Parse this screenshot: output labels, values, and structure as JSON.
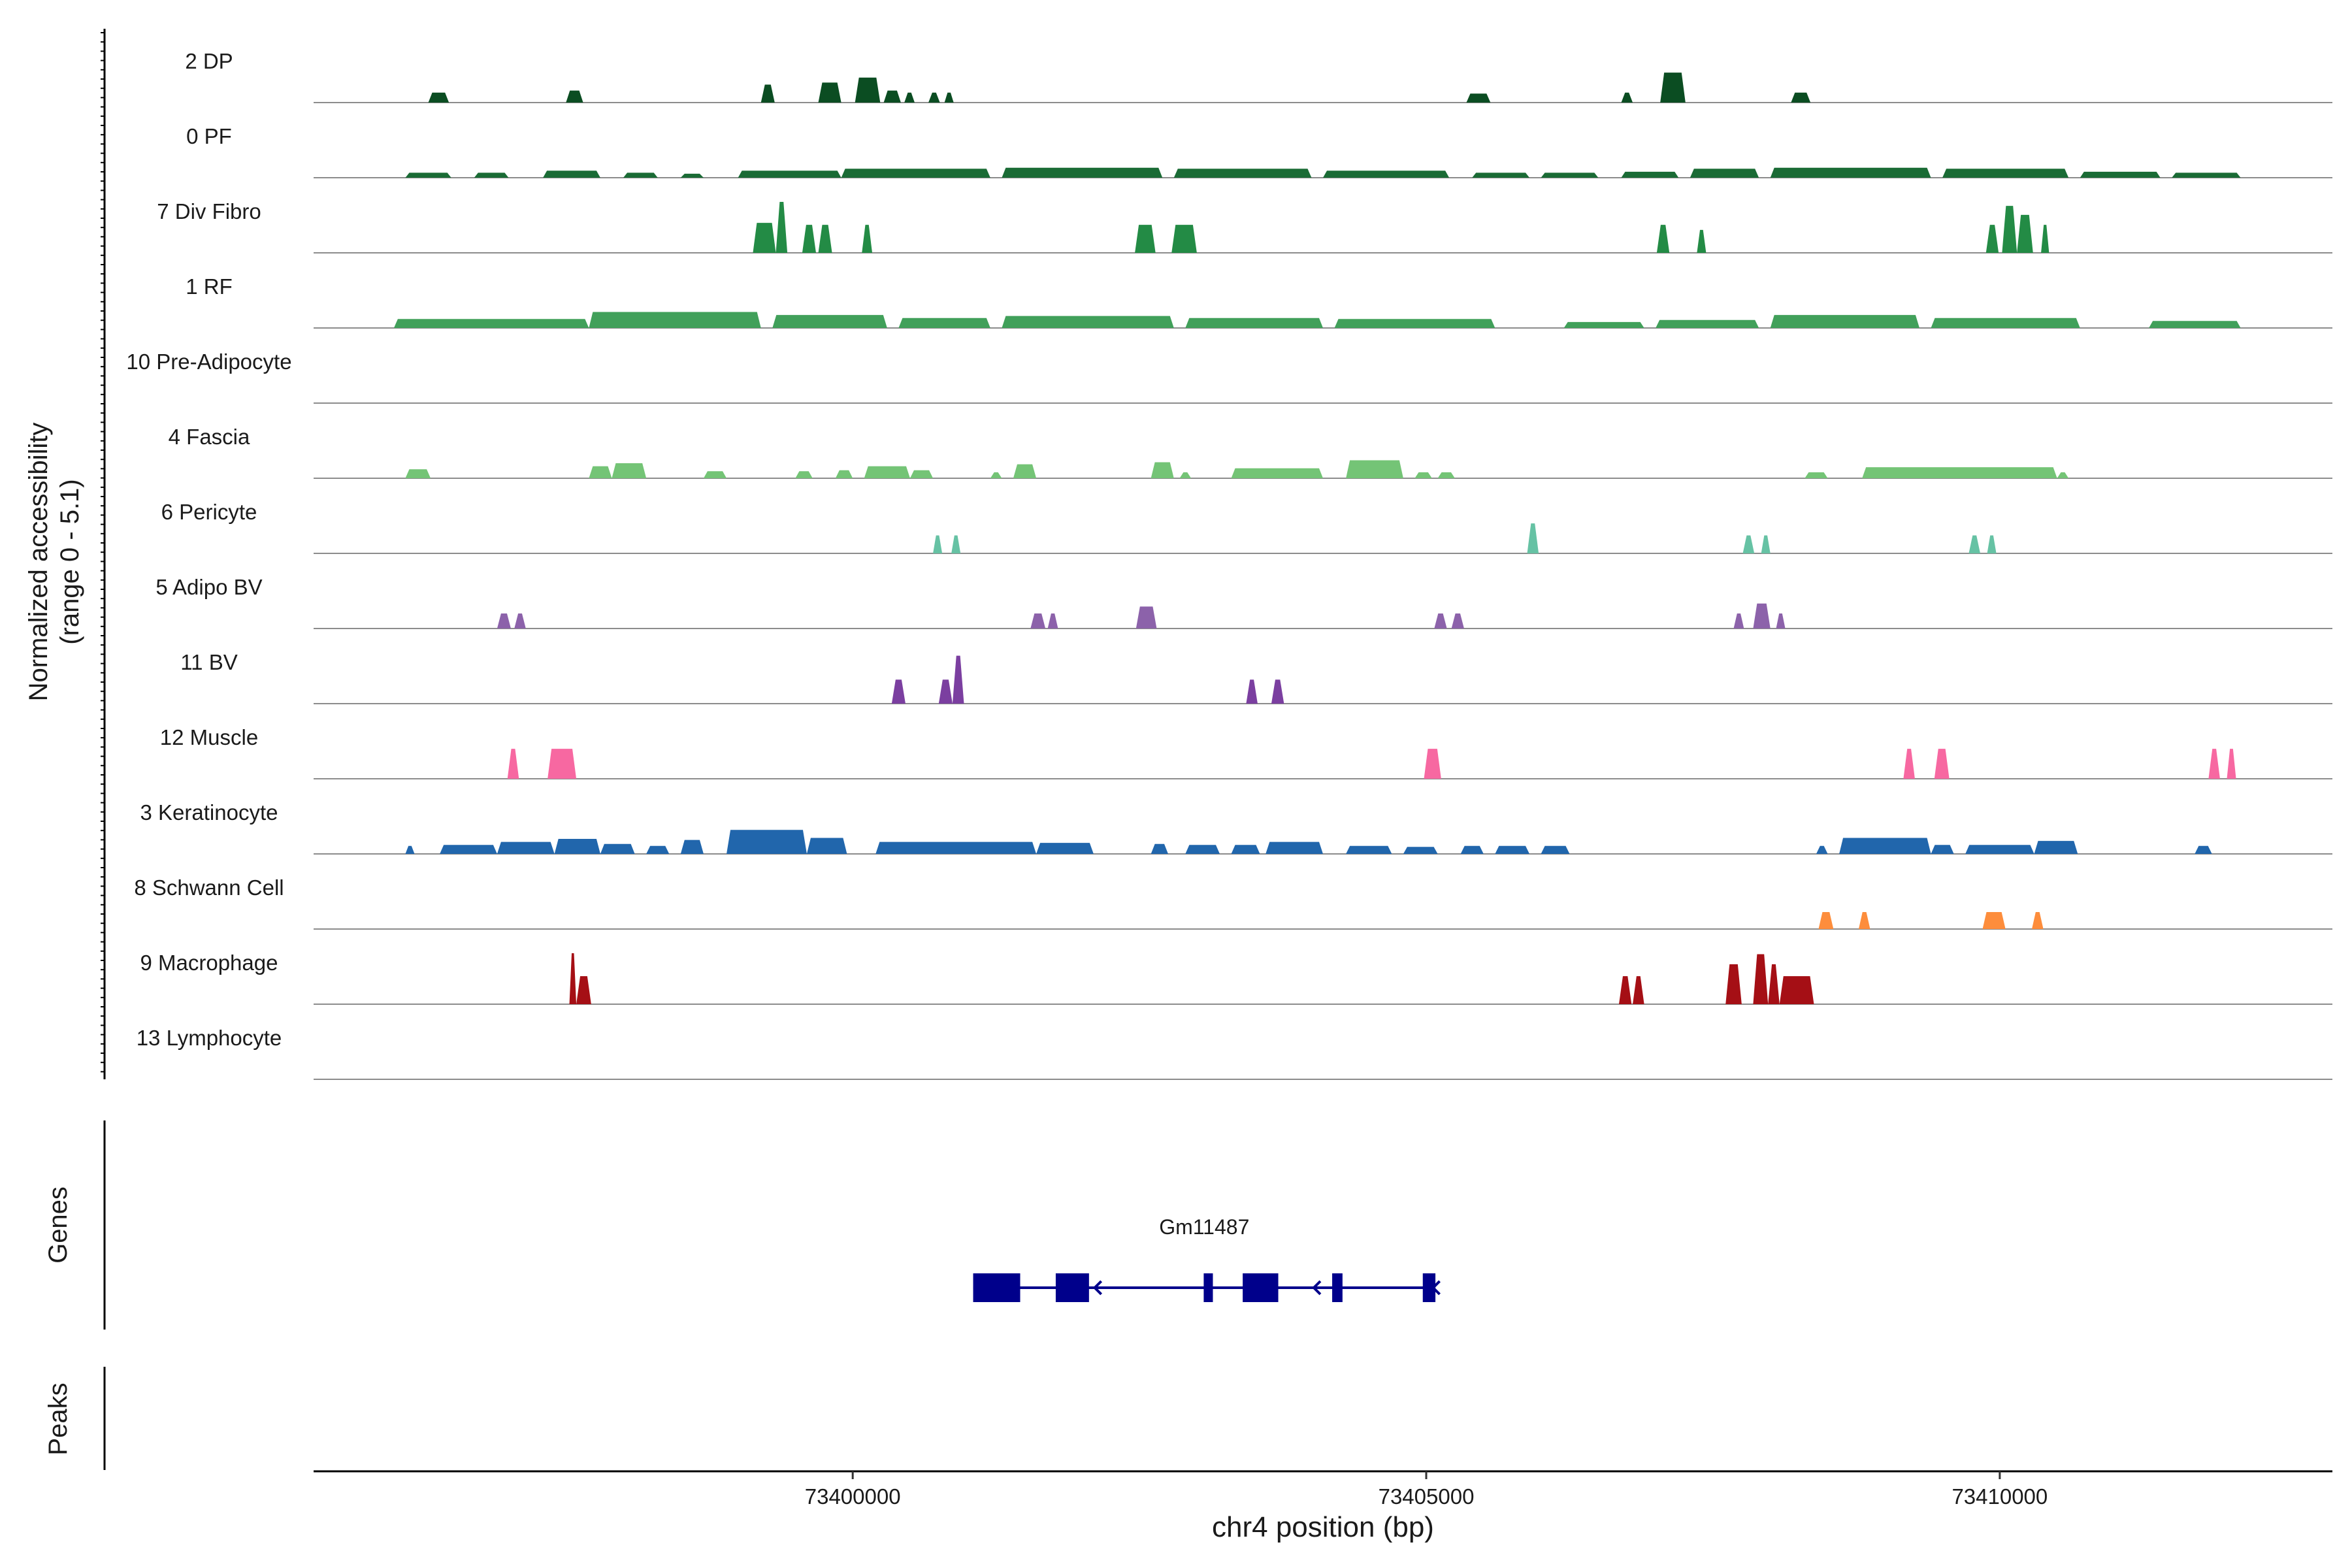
{
  "chart_data": {
    "type": "area",
    "title": "",
    "ylabel_lines": [
      "Normalized accessibility",
      "(range 0 - 5.1)"
    ],
    "y_range": [
      0,
      5.1
    ],
    "xlabel": "chr4 position (bp)",
    "xlim": [
      73395300,
      73412900
    ],
    "x_ticks": [
      73400000,
      73405000,
      73410000
    ],
    "x_tick_labels": [
      "73400000",
      "73405000",
      "73410000"
    ],
    "tracks": [
      {
        "name": "2 DP",
        "color": "#0b4d22",
        "peaks": [
          {
            "start": 73396300,
            "end": 73396480,
            "height": 1.0
          },
          {
            "start": 73397500,
            "end": 73397650,
            "height": 1.2
          },
          {
            "start": 73399200,
            "end": 73399320,
            "height": 1.8
          },
          {
            "start": 73399700,
            "end": 73399900,
            "height": 2.0
          },
          {
            "start": 73400020,
            "end": 73400240,
            "height": 2.5
          },
          {
            "start": 73400270,
            "end": 73400420,
            "height": 1.2
          },
          {
            "start": 73400450,
            "end": 73400540,
            "height": 1.0
          },
          {
            "start": 73400660,
            "end": 73400760,
            "height": 1.0
          },
          {
            "start": 73400800,
            "end": 73400880,
            "height": 1.0
          },
          {
            "start": 73405350,
            "end": 73405560,
            "height": 0.9
          },
          {
            "start": 73406700,
            "end": 73406800,
            "height": 1.0
          },
          {
            "start": 73407040,
            "end": 73407260,
            "height": 3.0
          },
          {
            "start": 73408180,
            "end": 73408350,
            "height": 1.0
          }
        ]
      },
      {
        "name": "0 PF",
        "color": "#1a6b35",
        "peaks": [
          {
            "start": 73396100,
            "end": 73396500,
            "height": 0.5
          },
          {
            "start": 73396700,
            "end": 73397000,
            "height": 0.5
          },
          {
            "start": 73397300,
            "end": 73397800,
            "height": 0.7
          },
          {
            "start": 73398000,
            "end": 73398300,
            "height": 0.5
          },
          {
            "start": 73398500,
            "end": 73398700,
            "height": 0.4
          },
          {
            "start": 73399000,
            "end": 73399900,
            "height": 0.7
          },
          {
            "start": 73399900,
            "end": 73401200,
            "height": 0.9
          },
          {
            "start": 73401300,
            "end": 73402700,
            "height": 1.0
          },
          {
            "start": 73402800,
            "end": 73404000,
            "height": 0.9
          },
          {
            "start": 73404100,
            "end": 73405200,
            "height": 0.7
          },
          {
            "start": 73405400,
            "end": 73405900,
            "height": 0.5
          },
          {
            "start": 73406000,
            "end": 73406500,
            "height": 0.5
          },
          {
            "start": 73406700,
            "end": 73407200,
            "height": 0.6
          },
          {
            "start": 73407300,
            "end": 73407900,
            "height": 0.9
          },
          {
            "start": 73408000,
            "end": 73409400,
            "height": 1.0
          },
          {
            "start": 73409500,
            "end": 73410600,
            "height": 0.9
          },
          {
            "start": 73410700,
            "end": 73411400,
            "height": 0.6
          },
          {
            "start": 73411500,
            "end": 73412100,
            "height": 0.5
          }
        ]
      },
      {
        "name": "7 Div Fibro",
        "color": "#238b45",
        "peaks": [
          {
            "start": 73399130,
            "end": 73399330,
            "height": 3.0
          },
          {
            "start": 73399330,
            "end": 73399430,
            "height": 5.1
          },
          {
            "start": 73399560,
            "end": 73399680,
            "height": 2.8
          },
          {
            "start": 73399700,
            "end": 73399820,
            "height": 2.8
          },
          {
            "start": 73400080,
            "end": 73400170,
            "height": 2.8
          },
          {
            "start": 73402460,
            "end": 73402640,
            "height": 2.8
          },
          {
            "start": 73402780,
            "end": 73403000,
            "height": 2.8
          },
          {
            "start": 73407010,
            "end": 73407120,
            "height": 2.8
          },
          {
            "start": 73407360,
            "end": 73407440,
            "height": 2.3
          },
          {
            "start": 73409880,
            "end": 73409990,
            "height": 2.8
          },
          {
            "start": 73410020,
            "end": 73410150,
            "height": 4.7
          },
          {
            "start": 73410150,
            "end": 73410290,
            "height": 3.8
          },
          {
            "start": 73410360,
            "end": 73410430,
            "height": 2.8
          }
        ]
      },
      {
        "name": "1 RF",
        "color": "#41a05a",
        "peaks": [
          {
            "start": 73396000,
            "end": 73397700,
            "height": 0.9
          },
          {
            "start": 73397700,
            "end": 73399200,
            "height": 1.6
          },
          {
            "start": 73399300,
            "end": 73400300,
            "height": 1.3
          },
          {
            "start": 73400400,
            "end": 73401200,
            "height": 1.0
          },
          {
            "start": 73401300,
            "end": 73402800,
            "height": 1.2
          },
          {
            "start": 73402900,
            "end": 73404100,
            "height": 1.0
          },
          {
            "start": 73404200,
            "end": 73405600,
            "height": 0.9
          },
          {
            "start": 73406200,
            "end": 73406900,
            "height": 0.6
          },
          {
            "start": 73407000,
            "end": 73407900,
            "height": 0.8
          },
          {
            "start": 73408000,
            "end": 73409300,
            "height": 1.3
          },
          {
            "start": 73409400,
            "end": 73410700,
            "height": 1.0
          },
          {
            "start": 73411300,
            "end": 73412100,
            "height": 0.7
          }
        ]
      },
      {
        "name": "10 Pre-Adipocyte",
        "color": "#5cb85c",
        "peaks": []
      },
      {
        "name": "4 Fascia",
        "color": "#74c476",
        "peaks": [
          {
            "start": 73396100,
            "end": 73396320,
            "height": 0.9
          },
          {
            "start": 73397700,
            "end": 73397900,
            "height": 1.2
          },
          {
            "start": 73397900,
            "end": 73398200,
            "height": 1.5
          },
          {
            "start": 73398700,
            "end": 73398900,
            "height": 0.7
          },
          {
            "start": 73399500,
            "end": 73399650,
            "height": 0.7
          },
          {
            "start": 73399850,
            "end": 73400000,
            "height": 0.8
          },
          {
            "start": 73400100,
            "end": 73400500,
            "height": 1.2
          },
          {
            "start": 73400500,
            "end": 73400700,
            "height": 0.8
          },
          {
            "start": 73401200,
            "end": 73401300,
            "height": 0.6
          },
          {
            "start": 73401400,
            "end": 73401600,
            "height": 1.4
          },
          {
            "start": 73402600,
            "end": 73402800,
            "height": 1.6
          },
          {
            "start": 73402850,
            "end": 73402950,
            "height": 0.6
          },
          {
            "start": 73403300,
            "end": 73404100,
            "height": 1.0
          },
          {
            "start": 73404300,
            "end": 73404800,
            "height": 1.8
          },
          {
            "start": 73404900,
            "end": 73405050,
            "height": 0.6
          },
          {
            "start": 73405100,
            "end": 73405250,
            "height": 0.6
          },
          {
            "start": 73408300,
            "end": 73408500,
            "height": 0.6
          },
          {
            "start": 73408800,
            "end": 73410500,
            "height": 1.1
          },
          {
            "start": 73410500,
            "end": 73410600,
            "height": 0.6
          }
        ]
      },
      {
        "name": "6 Pericyte",
        "color": "#66c2a4",
        "peaks": [
          {
            "start": 73400700,
            "end": 73400780,
            "height": 1.8
          },
          {
            "start": 73400860,
            "end": 73400940,
            "height": 1.8
          },
          {
            "start": 73405880,
            "end": 73405980,
            "height": 3.0
          },
          {
            "start": 73407760,
            "end": 73407860,
            "height": 1.8
          },
          {
            "start": 73407920,
            "end": 73408000,
            "height": 1.8
          },
          {
            "start": 73409730,
            "end": 73409830,
            "height": 1.8
          },
          {
            "start": 73409890,
            "end": 73409970,
            "height": 1.8
          }
        ]
      },
      {
        "name": "5 Adipo BV",
        "color": "#8c62aa",
        "peaks": [
          {
            "start": 73396900,
            "end": 73397020,
            "height": 1.5
          },
          {
            "start": 73397050,
            "end": 73397150,
            "height": 1.5
          },
          {
            "start": 73401550,
            "end": 73401680,
            "height": 1.5
          },
          {
            "start": 73401700,
            "end": 73401790,
            "height": 1.5
          },
          {
            "start": 73402470,
            "end": 73402650,
            "height": 2.2
          },
          {
            "start": 73405070,
            "end": 73405180,
            "height": 1.5
          },
          {
            "start": 73405220,
            "end": 73405330,
            "height": 1.5
          },
          {
            "start": 73407680,
            "end": 73407770,
            "height": 1.5
          },
          {
            "start": 73407850,
            "end": 73408000,
            "height": 2.5
          },
          {
            "start": 73408050,
            "end": 73408130,
            "height": 1.5
          }
        ]
      },
      {
        "name": "11 BV",
        "color": "#7b3fa0",
        "peaks": [
          {
            "start": 73400340,
            "end": 73400460,
            "height": 2.4
          },
          {
            "start": 73400750,
            "end": 73400870,
            "height": 2.4
          },
          {
            "start": 73400870,
            "end": 73400970,
            "height": 4.8
          },
          {
            "start": 73403430,
            "end": 73403530,
            "height": 2.4
          },
          {
            "start": 73403650,
            "end": 73403760,
            "height": 2.4
          }
        ]
      },
      {
        "name": "12 Muscle",
        "color": "#f768a1",
        "peaks": [
          {
            "start": 73396990,
            "end": 73397090,
            "height": 3.0
          },
          {
            "start": 73397340,
            "end": 73397590,
            "height": 3.0
          },
          {
            "start": 73404980,
            "end": 73405130,
            "height": 3.0
          },
          {
            "start": 73409160,
            "end": 73409260,
            "height": 3.0
          },
          {
            "start": 73409430,
            "end": 73409560,
            "height": 3.0
          },
          {
            "start": 73411820,
            "end": 73411920,
            "height": 3.0
          },
          {
            "start": 73411980,
            "end": 73412060,
            "height": 3.0
          }
        ]
      },
      {
        "name": "3 Keratinocyte",
        "color": "#2166ac",
        "peaks": [
          {
            "start": 73396100,
            "end": 73396180,
            "height": 0.8
          },
          {
            "start": 73396400,
            "end": 73396900,
            "height": 0.9
          },
          {
            "start": 73396900,
            "end": 73397400,
            "height": 1.2
          },
          {
            "start": 73397400,
            "end": 73397800,
            "height": 1.5
          },
          {
            "start": 73397800,
            "end": 73398100,
            "height": 1.0
          },
          {
            "start": 73398200,
            "end": 73398400,
            "height": 0.8
          },
          {
            "start": 73398500,
            "end": 73398700,
            "height": 1.4
          },
          {
            "start": 73398900,
            "end": 73399600,
            "height": 2.4
          },
          {
            "start": 73399600,
            "end": 73399950,
            "height": 1.6
          },
          {
            "start": 73400200,
            "end": 73401600,
            "height": 1.2
          },
          {
            "start": 73401600,
            "end": 73402100,
            "height": 1.1
          },
          {
            "start": 73402600,
            "end": 73402750,
            "height": 1.0
          },
          {
            "start": 73402900,
            "end": 73403200,
            "height": 0.9
          },
          {
            "start": 73403300,
            "end": 73403550,
            "height": 0.9
          },
          {
            "start": 73403600,
            "end": 73404100,
            "height": 1.2
          },
          {
            "start": 73404300,
            "end": 73404700,
            "height": 0.8
          },
          {
            "start": 73404800,
            "end": 73405100,
            "height": 0.7
          },
          {
            "start": 73405300,
            "end": 73405500,
            "height": 0.8
          },
          {
            "start": 73405600,
            "end": 73405900,
            "height": 0.8
          },
          {
            "start": 73406000,
            "end": 73406250,
            "height": 0.8
          },
          {
            "start": 73408400,
            "end": 73408500,
            "height": 0.8
          },
          {
            "start": 73408600,
            "end": 73409400,
            "height": 1.6
          },
          {
            "start": 73409400,
            "end": 73409600,
            "height": 0.9
          },
          {
            "start": 73409700,
            "end": 73410300,
            "height": 0.9
          },
          {
            "start": 73410300,
            "end": 73410680,
            "height": 1.3
          },
          {
            "start": 73411700,
            "end": 73411850,
            "height": 0.8
          }
        ]
      },
      {
        "name": "8 Schwann Cell",
        "color": "#fd8d3c",
        "peaks": [
          {
            "start": 73408420,
            "end": 73408550,
            "height": 1.7
          },
          {
            "start": 73408770,
            "end": 73408870,
            "height": 1.7
          },
          {
            "start": 73409850,
            "end": 73410050,
            "height": 1.7
          },
          {
            "start": 73410280,
            "end": 73410380,
            "height": 1.7
          }
        ]
      },
      {
        "name": "9 Macrophage",
        "color": "#a50f15",
        "peaks": [
          {
            "start": 73397530,
            "end": 73397590,
            "height": 5.1
          },
          {
            "start": 73397590,
            "end": 73397720,
            "height": 2.8
          },
          {
            "start": 73406680,
            "end": 73406790,
            "height": 2.8
          },
          {
            "start": 73406800,
            "end": 73406900,
            "height": 2.8
          },
          {
            "start": 73407610,
            "end": 73407750,
            "height": 4.0
          },
          {
            "start": 73407850,
            "end": 73407980,
            "height": 5.0
          },
          {
            "start": 73407980,
            "end": 73408080,
            "height": 4.0
          },
          {
            "start": 73408080,
            "end": 73408380,
            "height": 2.8
          }
        ]
      },
      {
        "name": "13 Lymphocyte",
        "color": "#084594",
        "peaks": []
      }
    ],
    "genes_label": "Genes",
    "peaks_label": "Peaks",
    "gene": {
      "name": "Gm11487",
      "color": "#00008b",
      "start": 73401050,
      "end": 73405080,
      "strand": "-",
      "exons": [
        {
          "start": 73401050,
          "end": 73401460,
          "kind": "thick"
        },
        {
          "start": 73401770,
          "end": 73402060,
          "kind": "thick"
        },
        {
          "start": 73403060,
          "end": 73403140,
          "kind": "thin"
        },
        {
          "start": 73403400,
          "end": 73403710,
          "kind": "thick"
        },
        {
          "start": 73404180,
          "end": 73404270,
          "kind": "thin"
        },
        {
          "start": 73404970,
          "end": 73405080,
          "kind": "thin"
        }
      ],
      "arrows": [
        73402110,
        73404020,
        73405060
      ]
    }
  }
}
